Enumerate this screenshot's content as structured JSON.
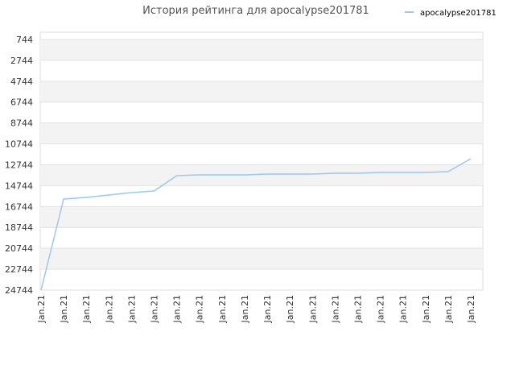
{
  "chart_data": {
    "type": "line",
    "title": "История рейтинга для apocalypse201781",
    "categories": [
      "Jan.21",
      "Jan.21",
      "Jan.21",
      "Jan.21",
      "Jan.21",
      "Jan.21",
      "Jan.21",
      "Jan.21",
      "Jan.21",
      "Jan.21",
      "Jan.21",
      "Jan.21",
      "Jan.21",
      "Jan.21",
      "Jan.21",
      "Jan.21",
      "Jan.21",
      "Jan.21",
      "Jan.21",
      "Jan.21"
    ],
    "series": [
      {
        "name": "apocalypse201781",
        "color": "#99c8f0",
        "values": [
          24744,
          16022,
          15870,
          15636,
          15405,
          15250,
          13784,
          13707,
          13707,
          13707,
          13630,
          13630,
          13630,
          13553,
          13553,
          13475,
          13475,
          13475,
          13398,
          12163
        ]
      }
    ],
    "ylim": [
      24744,
      50
    ],
    "yticks": [
      744,
      2744,
      4744,
      6744,
      8744,
      10744,
      12744,
      14744,
      16744,
      18744,
      20744,
      22744,
      24744
    ],
    "grid": true,
    "legend": "top-right"
  }
}
